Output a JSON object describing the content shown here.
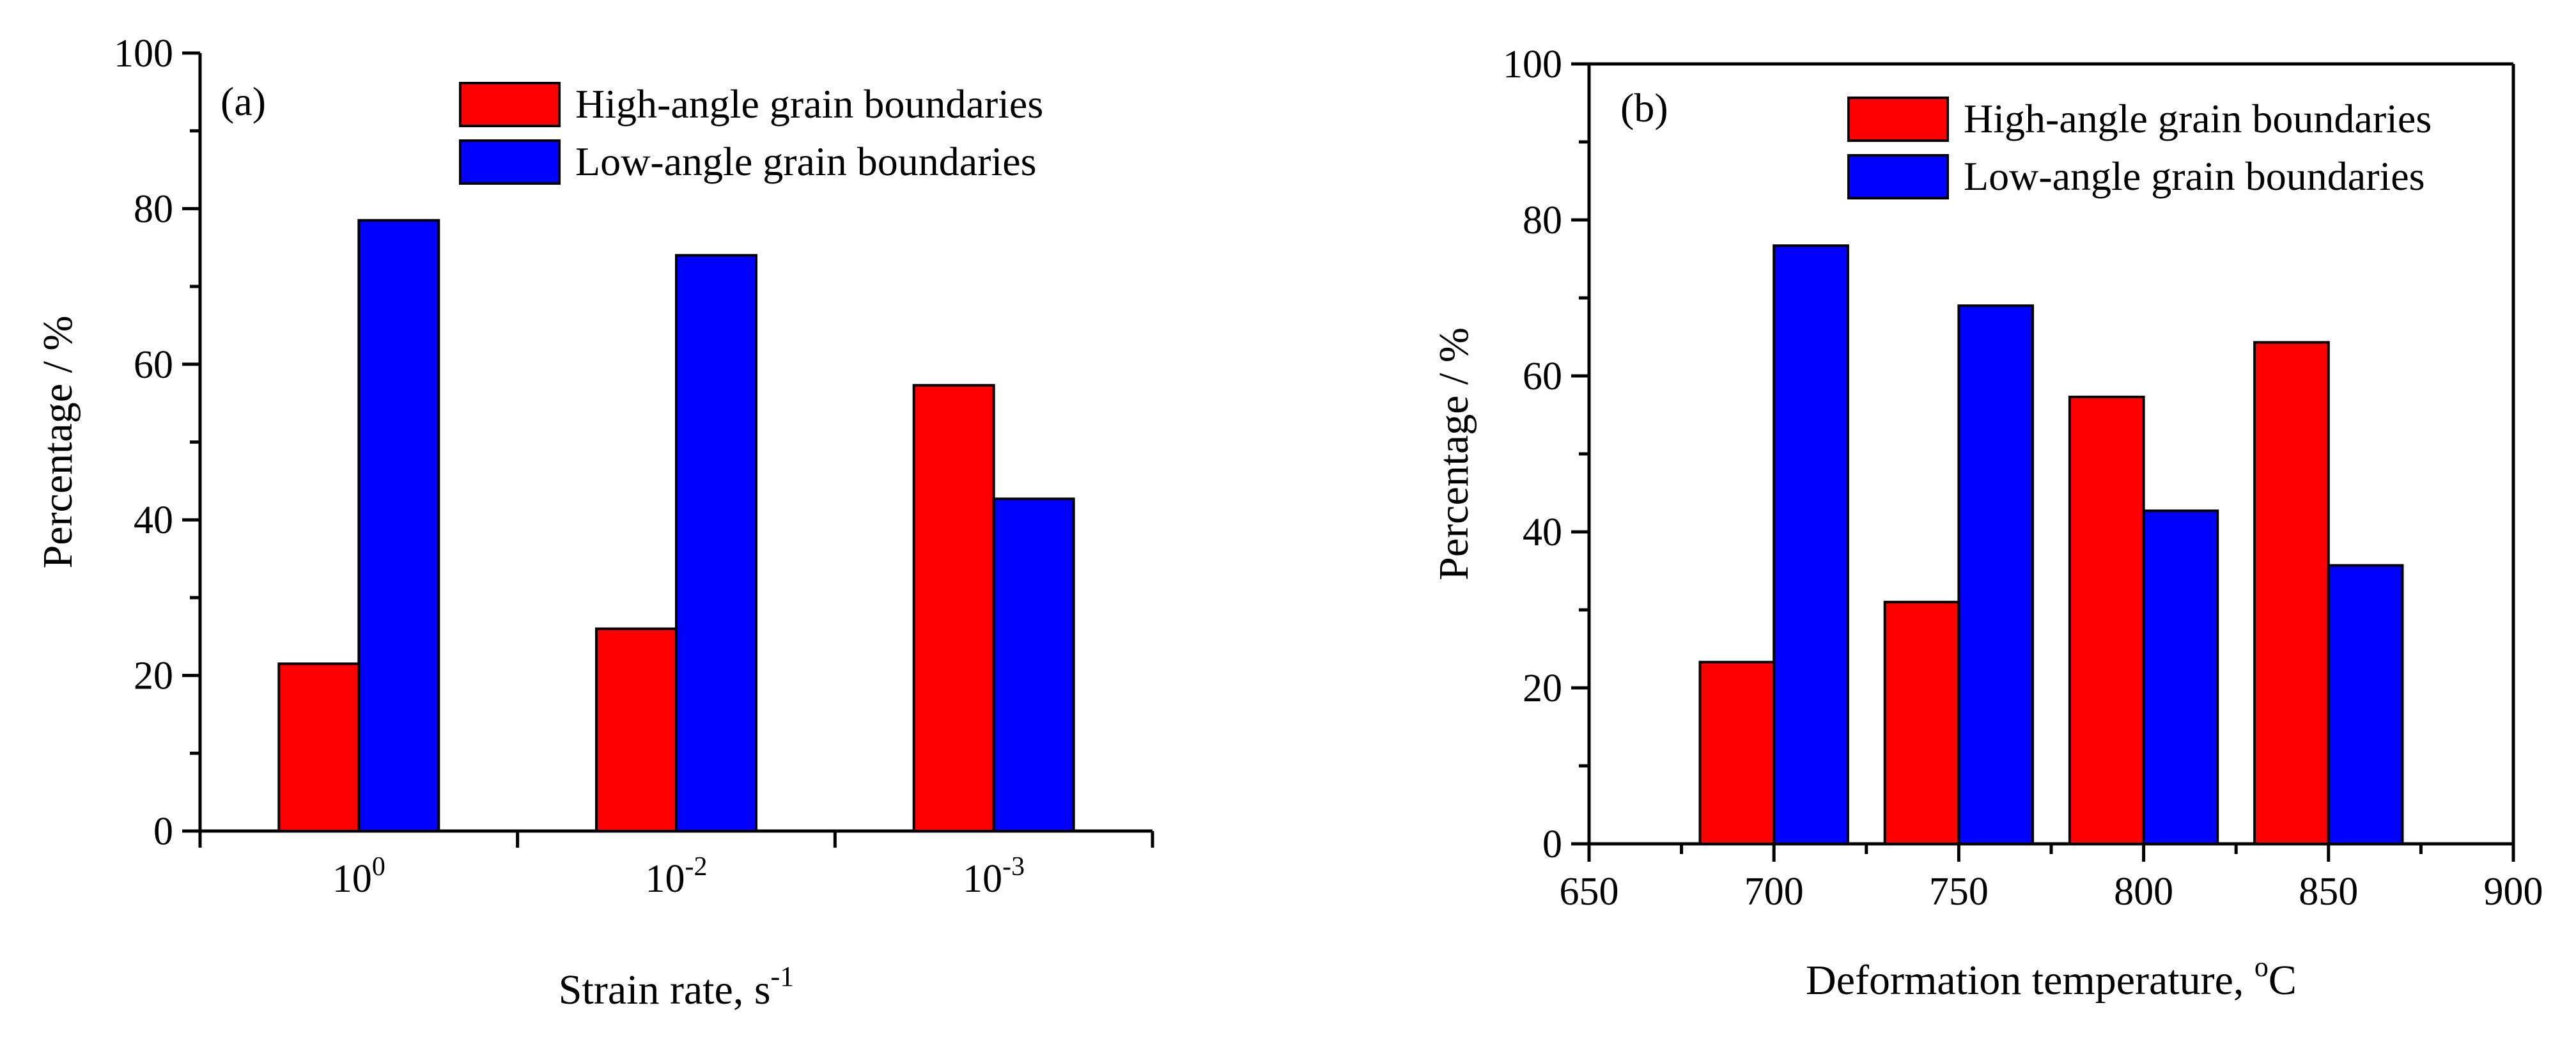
{
  "chart_data": [
    {
      "type": "bar",
      "panel_label": "(a)",
      "categories": [
        "10",
        "10",
        "10"
      ],
      "category_exponents": [
        "0",
        "-2",
        "-3"
      ],
      "series": [
        {
          "name": "High-angle grain boundaries",
          "color": "#ff0000",
          "values": [
            21.5,
            26.0,
            57.3
          ]
        },
        {
          "name": "Low-angle grain boundaries",
          "color": "#0000ff",
          "values": [
            78.5,
            74.0,
            42.7
          ]
        }
      ],
      "xlabel": "Strain rate, s",
      "xlabel_superscript": "-1",
      "ylabel": "Percentage / %",
      "ylim": [
        0,
        100
      ],
      "yticks": [
        "0",
        "20",
        "40",
        "60",
        "80",
        "100"
      ],
      "legend_position": "top-right"
    },
    {
      "type": "bar",
      "panel_label": "(b)",
      "x": [
        700,
        750,
        800,
        850
      ],
      "series": [
        {
          "name": "High-angle grain boundaries",
          "color": "#ff0000",
          "values": [
            23.3,
            31.0,
            57.3,
            64.3
          ]
        },
        {
          "name": "Low-angle grain boundaries",
          "color": "#0000ff",
          "values": [
            76.7,
            69.0,
            42.7,
            35.7
          ]
        }
      ],
      "xlabel": "Deformation temperature, ",
      "xlabel_superscript": "o",
      "xlabel_suffix": "C",
      "xlim": [
        650,
        900
      ],
      "xticks": [
        "650",
        "700",
        "750",
        "800",
        "850",
        "900"
      ],
      "ylabel": "Percentage / %",
      "ylim": [
        0,
        100
      ],
      "yticks": [
        "0",
        "20",
        "40",
        "60",
        "80",
        "100"
      ],
      "legend_position": "top-right"
    }
  ]
}
